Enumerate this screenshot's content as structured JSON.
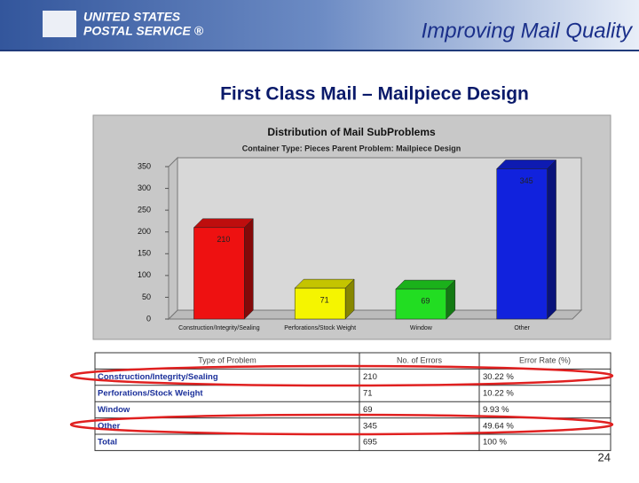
{
  "header": {
    "logo_line1": "UNITED STATES",
    "logo_line2": "POSTAL SERVICE ®",
    "title": "Improving Mail Quality"
  },
  "slide_title": "First Class Mail – Mailpiece Design",
  "chart_data": {
    "type": "bar3d",
    "title": "Distribution of Mail SubProblems",
    "subtitle": "Container Type: Pieces    Parent Problem: Mailpiece Design",
    "categories": [
      "Construction/Integrity/Sealing",
      "Perforations/Stock Weight",
      "Window",
      "Other"
    ],
    "values": [
      210,
      71,
      69,
      345
    ],
    "colors": [
      "#ee1111",
      "#f5f500",
      "#22dd22",
      "#1122dd"
    ],
    "ylim": [
      0,
      350
    ],
    "yticks": [
      0,
      50,
      100,
      150,
      200,
      250,
      300,
      350
    ],
    "grid": false
  },
  "table": {
    "header": [
      "Type of Problem",
      "No. of Errors",
      "Error Rate (%)"
    ],
    "rows": [
      [
        "Construction/Integrity/Sealing",
        "210",
        "30.22 %"
      ],
      [
        "Perforations/Stock Weight",
        "71",
        "10.22 %"
      ],
      [
        "Window",
        "69",
        "9.93 %"
      ],
      [
        "Other",
        "345",
        "49.64 %"
      ],
      [
        "Total",
        "695",
        "100 %"
      ]
    ]
  },
  "page_number": "24"
}
